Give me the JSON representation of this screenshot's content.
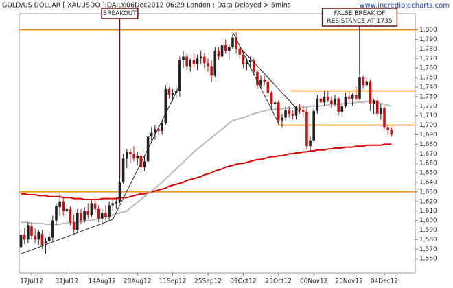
{
  "chart_data": {
    "type": "candlestick",
    "title": "GOLD/US DOLLAR [ XAUUSDO ]:DAILY:06Dec2012 06:29 London : Data Delayed > 5mins",
    "source": "www.incrediblecharts.com",
    "up_color": "#222222",
    "down_color": "#d01010",
    "categories": [
      null,
      null,
      null,
      "17Jul12",
      null,
      null,
      null,
      null,
      null,
      null,
      null,
      null,
      null,
      "31Jul12",
      null,
      null,
      null,
      null,
      null,
      null,
      null,
      null,
      null,
      "14Aug12",
      null,
      null,
      null,
      null,
      null,
      null,
      null,
      null,
      null,
      "28Aug12",
      null,
      null,
      null,
      null,
      null,
      null,
      null,
      null,
      null,
      "11Sep12",
      null,
      null,
      null,
      null,
      null,
      null,
      null,
      null,
      null,
      "25Sep12",
      null,
      null,
      null,
      null,
      null,
      null,
      null,
      null,
      null,
      "09Oct12",
      null,
      null,
      null,
      null,
      null,
      null,
      null,
      null,
      null,
      "23Oct12",
      null,
      null,
      null,
      null,
      null,
      null,
      null,
      null,
      null,
      "06Nov12",
      null,
      null,
      null,
      null,
      null,
      null,
      null,
      null,
      null,
      "20Nov12",
      null,
      null,
      null,
      null,
      null,
      null,
      null,
      null,
      null,
      "04Dec12",
      null,
      null
    ],
    "ohlc": [
      [
        1572,
        1590,
        1568,
        1585
      ],
      [
        1585,
        1592,
        1575,
        1580
      ],
      [
        1580,
        1598,
        1576,
        1595
      ],
      [
        1594,
        1598,
        1580,
        1584
      ],
      [
        1584,
        1592,
        1576,
        1580
      ],
      [
        1580,
        1590,
        1574,
        1588
      ],
      [
        1586,
        1590,
        1570,
        1574
      ],
      [
        1576,
        1582,
        1565,
        1578
      ],
      [
        1578,
        1588,
        1570,
        1583
      ],
      [
        1582,
        1605,
        1578,
        1600
      ],
      [
        1600,
        1618,
        1595,
        1615
      ],
      [
        1614,
        1628,
        1605,
        1620
      ],
      [
        1620,
        1625,
        1605,
        1610
      ],
      [
        1610,
        1618,
        1598,
        1612
      ],
      [
        1612,
        1615,
        1595,
        1598
      ],
      [
        1598,
        1606,
        1586,
        1590
      ],
      [
        1590,
        1612,
        1588,
        1608
      ],
      [
        1608,
        1612,
        1596,
        1600
      ],
      [
        1600,
        1614,
        1598,
        1610
      ],
      [
        1610,
        1618,
        1602,
        1606
      ],
      [
        1606,
        1622,
        1604,
        1618
      ],
      [
        1618,
        1624,
        1608,
        1612
      ],
      [
        1612,
        1616,
        1598,
        1602
      ],
      [
        1602,
        1612,
        1595,
        1608
      ],
      [
        1608,
        1616,
        1600,
        1604
      ],
      [
        1604,
        1620,
        1600,
        1616
      ],
      [
        1616,
        1622,
        1610,
        1618
      ],
      [
        1618,
        1624,
        1612,
        1620
      ],
      [
        1620,
        1645,
        1618,
        1640
      ],
      [
        1640,
        1670,
        1638,
        1665
      ],
      [
        1665,
        1675,
        1655,
        1672
      ],
      [
        1672,
        1675,
        1660,
        1670
      ],
      [
        1670,
        1678,
        1662,
        1665
      ],
      [
        1665,
        1672,
        1658,
        1668
      ],
      [
        1668,
        1670,
        1650,
        1656
      ],
      [
        1656,
        1668,
        1652,
        1662
      ],
      [
        1662,
        1692,
        1660,
        1688
      ],
      [
        1688,
        1698,
        1684,
        1692
      ],
      [
        1692,
        1700,
        1685,
        1696
      ],
      [
        1696,
        1700,
        1690,
        1694
      ],
      [
        1694,
        1705,
        1690,
        1702
      ],
      [
        1702,
        1742,
        1700,
        1738
      ],
      [
        1738,
        1740,
        1728,
        1732
      ],
      [
        1732,
        1738,
        1725,
        1734
      ],
      [
        1734,
        1742,
        1728,
        1736
      ],
      [
        1736,
        1772,
        1730,
        1768
      ],
      [
        1768,
        1778,
        1760,
        1772
      ],
      [
        1772,
        1775,
        1758,
        1762
      ],
      [
        1762,
        1770,
        1756,
        1768
      ],
      [
        1768,
        1775,
        1760,
        1764
      ],
      [
        1764,
        1774,
        1758,
        1770
      ],
      [
        1770,
        1778,
        1764,
        1772
      ],
      [
        1772,
        1776,
        1760,
        1765
      ],
      [
        1765,
        1770,
        1756,
        1762
      ],
      [
        1762,
        1768,
        1745,
        1752
      ],
      [
        1752,
        1782,
        1750,
        1778
      ],
      [
        1778,
        1782,
        1768,
        1772
      ],
      [
        1772,
        1788,
        1770,
        1784
      ],
      [
        1784,
        1790,
        1775,
        1778
      ],
      [
        1778,
        1785,
        1768,
        1782
      ],
      [
        1782,
        1796,
        1780,
        1792
      ],
      [
        1792,
        1798,
        1775,
        1780
      ],
      [
        1780,
        1784,
        1770,
        1774
      ],
      [
        1774,
        1778,
        1760,
        1764
      ],
      [
        1764,
        1770,
        1758,
        1766
      ],
      [
        1766,
        1772,
        1760,
        1768
      ],
      [
        1768,
        1770,
        1752,
        1756
      ],
      [
        1756,
        1758,
        1738,
        1742
      ],
      [
        1742,
        1752,
        1738,
        1748
      ],
      [
        1748,
        1752,
        1742,
        1746
      ],
      [
        1746,
        1748,
        1730,
        1734
      ],
      [
        1734,
        1736,
        1718,
        1722
      ],
      [
        1722,
        1728,
        1715,
        1724
      ],
      [
        1724,
        1726,
        1700,
        1705
      ],
      [
        1705,
        1712,
        1698,
        1708
      ],
      [
        1708,
        1720,
        1705,
        1716
      ],
      [
        1716,
        1720,
        1708,
        1712
      ],
      [
        1712,
        1716,
        1706,
        1710
      ],
      [
        1710,
        1720,
        1706,
        1718
      ],
      [
        1718,
        1722,
        1712,
        1716
      ],
      [
        1716,
        1720,
        1708,
        1714
      ],
      [
        1714,
        1718,
        1674,
        1678
      ],
      [
        1678,
        1688,
        1672,
        1684
      ],
      [
        1684,
        1718,
        1682,
        1715
      ],
      [
        1715,
        1732,
        1712,
        1728
      ],
      [
        1728,
        1732,
        1716,
        1724
      ],
      [
        1724,
        1736,
        1720,
        1730
      ],
      [
        1730,
        1736,
        1724,
        1726
      ],
      [
        1726,
        1730,
        1718,
        1722
      ],
      [
        1722,
        1732,
        1720,
        1728
      ],
      [
        1728,
        1730,
        1710,
        1714
      ],
      [
        1714,
        1724,
        1710,
        1720
      ],
      [
        1720,
        1734,
        1718,
        1730
      ],
      [
        1730,
        1736,
        1724,
        1728
      ],
      [
        1728,
        1734,
        1720,
        1732
      ],
      [
        1732,
        1740,
        1726,
        1728
      ],
      [
        1728,
        1754,
        1726,
        1750
      ],
      [
        1750,
        1752,
        1738,
        1742
      ],
      [
        1742,
        1750,
        1740,
        1746
      ],
      [
        1746,
        1748,
        1715,
        1722
      ],
      [
        1722,
        1728,
        1712,
        1726
      ],
      [
        1726,
        1730,
        1710,
        1712
      ],
      [
        1712,
        1722,
        1706,
        1718
      ],
      [
        1718,
        1720,
        1696,
        1698
      ],
      [
        1698,
        1700,
        1690,
        1695
      ],
      [
        1695,
        1698,
        1688,
        1690
      ]
    ],
    "moving_averages": [
      {
        "color": "#dd0000",
        "values": [
          1628,
          1628,
          1627,
          1627,
          1627,
          1626,
          1626,
          1626,
          1625,
          1625,
          1625,
          1625,
          1624,
          1624,
          1624,
          1623,
          1623,
          1623,
          1622,
          1622,
          1622,
          1622,
          1622,
          1623,
          1623,
          1623,
          1623,
          1623,
          1624,
          1624,
          1624,
          1625,
          1626,
          1627,
          1628,
          1628,
          1629,
          1630,
          1631,
          1632,
          1633,
          1634,
          1636,
          1637,
          1638,
          1639,
          1640,
          1642,
          1643,
          1644,
          1645,
          1646,
          1648,
          1649,
          1650,
          1652,
          1653,
          1654,
          1656,
          1657,
          1658,
          1659,
          1660,
          1660,
          1661,
          1662,
          1663,
          1664,
          1664,
          1665,
          1666,
          1667,
          1667,
          1668,
          1668,
          1669,
          1670,
          1670,
          1671,
          1671,
          1672,
          1672,
          1673,
          1673,
          1674,
          1674,
          1674,
          1675,
          1675,
          1676,
          1676,
          1676,
          1677,
          1677,
          1677,
          1678,
          1678,
          1678,
          1679,
          1679,
          1679,
          1679,
          1679,
          1680,
          1680,
          1680
        ]
      },
      {
        "color": "#bbbbbb",
        "values": [
          1598,
          1598,
          1598,
          1597,
          1597,
          1597,
          1597,
          1596,
          1596,
          1596,
          1596,
          1596,
          1597,
          1597,
          1598,
          1598,
          1598,
          1599,
          1599,
          1600,
          1600,
          1601,
          1602,
          1603,
          1604,
          1605,
          1606,
          1607,
          1608,
          1609,
          1610,
          1613,
          1616,
          1619,
          1622,
          1625,
          1628,
          1631,
          1634,
          1637,
          1640,
          1644,
          1647,
          1651,
          1654,
          1658,
          1661,
          1665,
          1668,
          1672,
          1675,
          1678,
          1681,
          1684,
          1687,
          1690,
          1693,
          1696,
          1699,
          1702,
          1705,
          1706,
          1707,
          1708,
          1709,
          1711,
          1712,
          1713,
          1714,
          1715,
          1716,
          1716,
          1717,
          1717,
          1717,
          1718,
          1718,
          1718,
          1719,
          1719,
          1719,
          1719,
          1720,
          1720,
          1720,
          1720,
          1721,
          1721,
          1722,
          1722,
          1722,
          1722,
          1723,
          1723,
          1723,
          1724,
          1724,
          1724,
          1725,
          1725,
          1725,
          1724,
          1723,
          1722,
          1721,
          1720
        ]
      }
    ],
    "levels": [
      {
        "value": 1800,
        "from": 0,
        "color": "#f08c00"
      },
      {
        "value": 1630,
        "from": 0,
        "color": "#f08c00"
      },
      {
        "value": 1736,
        "from": 77,
        "color": "#f08c00"
      },
      {
        "value": 1700,
        "from": 73,
        "color": "#f08c00"
      }
    ],
    "trendlines": [
      {
        "from": [
          0,
          1565
        ],
        "to": [
          26,
          1601
        ]
      },
      {
        "from": [
          26,
          1601
        ],
        "to": [
          45,
          1742
        ]
      },
      {
        "from": [
          60,
          1798
        ],
        "to": [
          73,
          1702
        ]
      },
      {
        "from": [
          62,
          1782
        ],
        "to": [
          79,
          1714
        ]
      }
    ],
    "annotations": [
      {
        "lines": [
          "BREAKOUT"
        ],
        "index": 28,
        "to": 1645
      },
      {
        "lines": [
          "FALSE BREAK OF",
          "RESISTANCE AT 1735"
        ],
        "index": 96,
        "to": 1754
      }
    ],
    "ylim": [
      1545,
      1817
    ],
    "yticks": [
      {
        "value": 1560,
        "label": "1,560"
      },
      {
        "value": 1570,
        "label": "1,570"
      },
      {
        "value": 1580,
        "label": "1,580"
      },
      {
        "value": 1590,
        "label": "1,590"
      },
      {
        "value": 1600,
        "label": "1,600"
      },
      {
        "value": 1610,
        "label": "1,610"
      },
      {
        "value": 1620,
        "label": "1,620"
      },
      {
        "value": 1630,
        "label": "1,630"
      },
      {
        "value": 1640,
        "label": "1,640"
      },
      {
        "value": 1650,
        "label": "1,650"
      },
      {
        "value": 1660,
        "label": "1,660"
      },
      {
        "value": 1670,
        "label": "1,670"
      },
      {
        "value": 1680,
        "label": "1,680"
      },
      {
        "value": 1690,
        "label": "1,690"
      },
      {
        "value": 1700,
        "label": "1,700"
      },
      {
        "value": 1710,
        "label": "1,710"
      },
      {
        "value": 1720,
        "label": "1,720"
      },
      {
        "value": 1730,
        "label": "1,730"
      },
      {
        "value": 1740,
        "label": "1,740"
      },
      {
        "value": 1750,
        "label": "1,750"
      },
      {
        "value": 1760,
        "label": "1,760"
      },
      {
        "value": 1770,
        "label": "1,770"
      },
      {
        "value": 1780,
        "label": "1,780"
      },
      {
        "value": 1790,
        "label": "1,790"
      },
      {
        "value": 1800,
        "label": "1,800"
      }
    ],
    "grid": false
  }
}
